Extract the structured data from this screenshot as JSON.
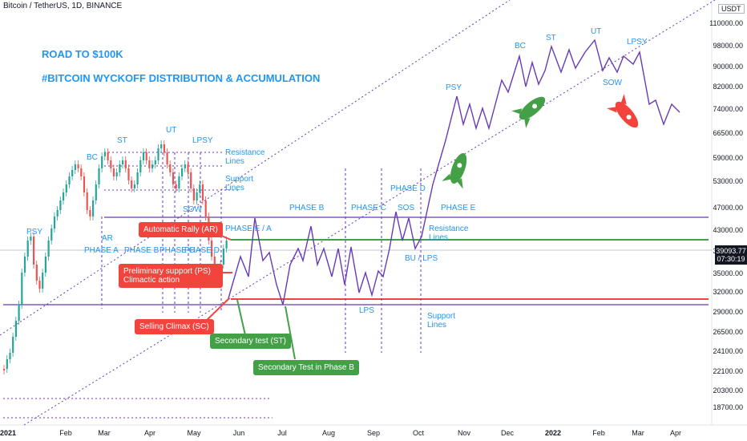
{
  "title": "Bitcoin / TetherUS, 1D, BINANCE",
  "headline1": "ROAD TO $100K",
  "headline2": "#BITCOIN WYCKOFF DISTRIBUTION & ACCUMULATION",
  "currency_badge": "USDT",
  "price_tag": {
    "price": "39093.77",
    "countdown": "07:30:19"
  },
  "y_axis": [
    "110000.00",
    "98000.00",
    "90000.00",
    "82000.00",
    "74000.00",
    "66500.00",
    "59000.00",
    "53000.00",
    "47000.00",
    "43000.00",
    "39000.00",
    "35000.00",
    "32000.00",
    "29000.00",
    "26500.00",
    "24100.00",
    "22100.00",
    "20300.00",
    "18700.00"
  ],
  "x_axis": [
    "2021",
    "Feb",
    "Mar",
    "Apr",
    "May",
    "Jun",
    "Jul",
    "Aug",
    "Sep",
    "Oct",
    "Nov",
    "Dec",
    "2022",
    "Feb",
    "Mar",
    "Apr"
  ],
  "labels": {
    "psy1": "PSY",
    "bc1": "BC",
    "st1": "ST",
    "ut1": "UT",
    "lpsy1": "LPSY",
    "sow1": "SOW",
    "ar1": "AR",
    "resistance1": "Resistance\nLines",
    "support1": "Support\nLines",
    "phase_a": "PHASE A",
    "phase_b": "PHASE B",
    "phase_c": "PHASE C",
    "phase_d": "PHASE D",
    "phase_e_a": "PHASE E / A",
    "phase_b2": "PHASE B",
    "phase_c2": "PHASE C",
    "phase_d2": "PHASE D",
    "phase_e2": "PHASE E",
    "sos": "SOS",
    "lps": "LPS",
    "bu_lps": "BU / LPS",
    "resistance2": "Resistance\nLines",
    "support2": "Support\nLines",
    "psy2": "PSY",
    "bc2": "BC",
    "st2": "ST",
    "ut2": "UT",
    "lpsy2": "LPSY",
    "sow2": "SOW"
  },
  "callouts": {
    "ar": "Automatic Rally (AR)",
    "ps": "Preliminary support (PS)\nClimactic action",
    "sc": "Selling Climax (SC)",
    "st": "Secondary test (ST)",
    "st_b": "Secondary Test in Phase B"
  },
  "colors": {
    "accent": "#2196f3",
    "purple": "#673ab7",
    "red": "#f2443d",
    "green": "#43a047"
  }
}
